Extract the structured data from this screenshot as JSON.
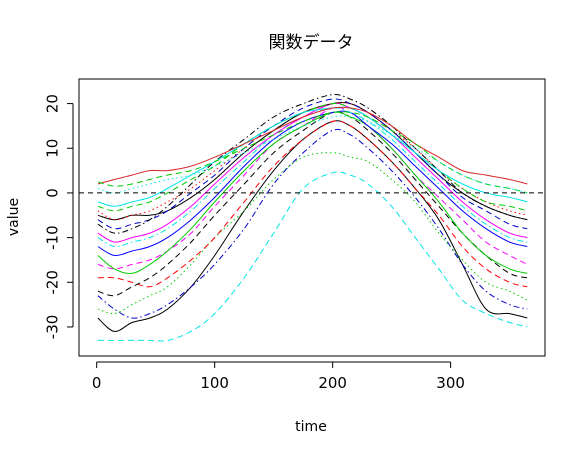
{
  "chart_data": {
    "type": "line",
    "title": "関数データ",
    "xlabel": "time",
    "ylabel": "value",
    "xlim": [
      -15,
      380
    ],
    "ylim": [
      -36.5,
      25.5
    ],
    "x_ticks": [
      "0",
      "100",
      "200",
      "300"
    ],
    "x_tick_values": [
      0,
      100,
      200,
      300
    ],
    "y_ticks": [
      "-30",
      "-20",
      "-10",
      "0",
      "10",
      "20"
    ],
    "y_tick_values": [
      -30,
      -20,
      -10,
      0,
      10,
      20
    ],
    "reference_line": {
      "y": 0,
      "style": "dashed",
      "color": "#000000"
    },
    "grid": false,
    "legend": "none",
    "series_x": [
      1,
      15,
      30,
      45,
      60,
      80,
      100,
      125,
      150,
      175,
      200,
      215,
      230,
      250,
      270,
      290,
      310,
      330,
      350,
      365
    ],
    "series": [
      {
        "color": "#00e5e5",
        "dash": "dashed",
        "values": [
          -33,
          -33,
          -33,
          -33,
          -33,
          -31,
          -27,
          -19,
          -9,
          1,
          4.5,
          4,
          2,
          -3,
          -10,
          -17,
          -24,
          -27,
          -29,
          -30
        ]
      },
      {
        "color": "#000000",
        "dash": "solid",
        "values": [
          -28,
          -31,
          -29,
          -28,
          -26,
          -21,
          -14,
          -4,
          5,
          12,
          16,
          15,
          12,
          7,
          1,
          -6,
          -16,
          -26,
          -27,
          -28
        ]
      },
      {
        "color": "#0000cc",
        "dash": "dashdot",
        "values": [
          -23,
          -26,
          -28,
          -27,
          -25,
          -21,
          -16,
          -8,
          2,
          9,
          14,
          13,
          10,
          5,
          -1,
          -8,
          -16,
          -22,
          -25,
          -26
        ]
      },
      {
        "color": "#00cc00",
        "dash": "dotted",
        "values": [
          -26,
          -27,
          -25,
          -23,
          -21,
          -16,
          -10,
          -4,
          3,
          8,
          9,
          8,
          7,
          3,
          -2,
          -9,
          -15,
          -20,
          -22,
          -24
        ]
      },
      {
        "color": "#ff0000",
        "dash": "dashed",
        "values": [
          -19,
          -19,
          -20,
          -21,
          -19,
          -15,
          -10,
          -2,
          6,
          12,
          16,
          15,
          12,
          7,
          1,
          -5,
          -12,
          -17,
          -20,
          -21
        ]
      },
      {
        "color": "#000000",
        "dash": "dashed",
        "values": [
          -22,
          -23,
          -21,
          -19,
          -16,
          -11,
          -5,
          2,
          9,
          14,
          18,
          17,
          14,
          9,
          3,
          -3,
          -9,
          -14,
          -18,
          -19
        ]
      },
      {
        "color": "#ff00ff",
        "dash": "dashed",
        "values": [
          -16,
          -17,
          -16,
          -15,
          -13,
          -9,
          -3,
          4,
          11,
          15,
          19,
          18,
          15,
          10,
          4,
          -1,
          -6,
          -11,
          -14,
          -16
        ]
      },
      {
        "color": "#00cc00",
        "dash": "solid",
        "values": [
          -14,
          -17,
          -18,
          -16,
          -13,
          -8,
          -2,
          5,
          11,
          15,
          18,
          17,
          15,
          10,
          4,
          -2,
          -9,
          -14,
          -17,
          -18
        ]
      },
      {
        "color": "#0000ff",
        "dash": "solid",
        "values": [
          -12,
          -14,
          -13,
          -12,
          -10,
          -6,
          -1,
          6,
          12,
          16,
          18,
          18,
          15,
          11,
          6,
          1,
          -4,
          -8,
          -11,
          -12
        ]
      },
      {
        "color": "#00e5e5",
        "dash": "dashdot",
        "values": [
          -10,
          -12,
          -11,
          -10,
          -8,
          -4,
          1,
          7,
          13,
          17,
          19,
          18,
          16,
          12,
          7,
          2,
          -3,
          -7,
          -10,
          -11
        ]
      },
      {
        "color": "#ff00ff",
        "dash": "solid",
        "values": [
          -9,
          -11,
          -10,
          -9,
          -7,
          -3,
          2,
          8,
          13,
          17,
          20,
          19,
          17,
          13,
          8,
          3,
          -2,
          -6,
          -9,
          -10
        ]
      },
      {
        "color": "#000000",
        "dash": "solid",
        "values": [
          -5,
          -6,
          -5,
          -5,
          -4,
          -1,
          3,
          9,
          14,
          18,
          20,
          20,
          18,
          14,
          9,
          4,
          0,
          -3,
          -5,
          -6
        ]
      },
      {
        "color": "#ff0000",
        "dash": "dotted",
        "values": [
          -4,
          -6,
          -5,
          -4,
          -2,
          1,
          5,
          10,
          15,
          18,
          20,
          20,
          18,
          14,
          10,
          5,
          1,
          -2,
          -4,
          -5
        ]
      },
      {
        "color": "#0000cc",
        "dash": "dashed",
        "values": [
          -6,
          -8,
          -7,
          -6,
          -4,
          0,
          4,
          10,
          15,
          19,
          21,
          20,
          18,
          14,
          9,
          4,
          -1,
          -4,
          -7,
          -8
        ]
      },
      {
        "color": "#00cc00",
        "dash": "dashed",
        "values": [
          -3,
          -4,
          -3,
          -2,
          0,
          3,
          6,
          11,
          15,
          18,
          20,
          19,
          17,
          13,
          9,
          5,
          1,
          -2,
          -3,
          -4
        ]
      },
      {
        "color": "#000000",
        "dash": "dashdot",
        "values": [
          -7,
          -9,
          -8,
          -6,
          -3,
          2,
          7,
          12,
          17,
          20,
          22,
          21,
          19,
          15,
          10,
          5,
          0,
          -3,
          -5,
          -6
        ]
      },
      {
        "color": "#00e5e5",
        "dash": "solid",
        "values": [
          -2,
          -3,
          -2,
          -1,
          1,
          4,
          7,
          11,
          15,
          18,
          19,
          19,
          17,
          13,
          9,
          5,
          2,
          0,
          -1,
          -2
        ]
      },
      {
        "color": "#d62728",
        "dash": "solid",
        "values": [
          2,
          3,
          4,
          5,
          5,
          6,
          8,
          11,
          14,
          17,
          19,
          19,
          18,
          15,
          11,
          8,
          5,
          4,
          3,
          2
        ]
      },
      {
        "color": "#00cc00",
        "dash": "dashed",
        "values": [
          2.5,
          1.5,
          2,
          3,
          4,
          5,
          7,
          10,
          13,
          16,
          18,
          18,
          17,
          14,
          11,
          7,
          4,
          2,
          1,
          0
        ]
      },
      {
        "color": "#00e5e5",
        "dash": "dotted",
        "values": [
          1,
          0,
          1,
          2,
          3,
          4,
          6,
          9,
          12,
          15,
          17,
          17,
          16,
          13,
          10,
          7,
          4,
          2,
          1,
          0
        ]
      }
    ]
  }
}
